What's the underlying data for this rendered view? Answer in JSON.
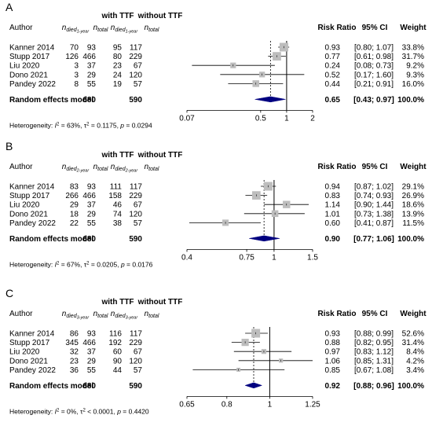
{
  "chart_data": [
    {
      "type": "forest",
      "panel_label": "A",
      "header_group_1": "with TTF",
      "header_group_2": "without TTF",
      "col_author": "Author",
      "col_n1_base": "n",
      "col_n1_sub": "died",
      "col_n1_subsub": "1-year",
      "col_ntotal_base": "n",
      "col_ntotal_sub": "total",
      "col_rr": "Risk Ratio",
      "col_ci": "95% CI",
      "col_weight": "Weight",
      "studies": [
        {
          "author": "Kanner 2014",
          "e1": "70",
          "n1": "93",
          "e2": "95",
          "n2": "117",
          "rr": 0.93,
          "lo": 0.8,
          "hi": 1.07,
          "rr_text": "0.93",
          "ci_text": "[0.80; 1.07]",
          "weight": 33.8,
          "weight_text": "33.8%"
        },
        {
          "author": "Stupp 2017",
          "e1": "126",
          "n1": "466",
          "e2": "80",
          "n2": "229",
          "rr": 0.77,
          "lo": 0.61,
          "hi": 0.98,
          "rr_text": "0.77",
          "ci_text": "[0.61; 0.98]",
          "weight": 31.7,
          "weight_text": "31.7%"
        },
        {
          "author": "Liu 2020",
          "e1": "3",
          "n1": "37",
          "e2": "23",
          "n2": "67",
          "rr": 0.24,
          "lo": 0.08,
          "hi": 0.73,
          "rr_text": "0.24",
          "ci_text": "[0.08; 0.73]",
          "weight": 9.2,
          "weight_text": "9.2%"
        },
        {
          "author": "Dono 2021",
          "e1": "3",
          "n1": "29",
          "e2": "24",
          "n2": "120",
          "rr": 0.52,
          "lo": 0.17,
          "hi": 1.6,
          "rr_text": "0.52",
          "ci_text": "[0.17; 1.60]",
          "weight": 9.3,
          "weight_text": "9.3%"
        },
        {
          "author": "Pandey 2022",
          "e1": "8",
          "n1": "55",
          "e2": "19",
          "n2": "57",
          "rr": 0.44,
          "lo": 0.21,
          "hi": 0.91,
          "rr_text": "0.44",
          "ci_text": "[0.21; 0.91]",
          "weight": 16.0,
          "weight_text": "16.0%"
        }
      ],
      "summary": {
        "label": "Random effects model",
        "n1": "680",
        "n2": "590",
        "rr": 0.65,
        "lo": 0.43,
        "hi": 0.97,
        "rr_text": "0.65",
        "ci_text": "[0.43; 0.97]",
        "weight_text": "100.0%"
      },
      "heterogeneity": {
        "prefix": "Heterogeneity: ",
        "i2_text": " = 63%, ",
        "tau2_text": " = 0.1175, ",
        "p_text": " = 0.0294"
      },
      "xscale": "log",
      "xlim": [
        0.07,
        2
      ],
      "ticks": [
        0.07,
        0.5,
        1,
        2
      ],
      "tick_labels": [
        "0.07",
        "0.5",
        "1",
        "2"
      ]
    },
    {
      "type": "forest",
      "panel_label": "B",
      "header_group_1": "with TTF",
      "header_group_2": "without TTF",
      "col_author": "Author",
      "col_n1_base": "n",
      "col_n1_sub": "died",
      "col_n1_subsub": "2-year",
      "col_ntotal_base": "n",
      "col_ntotal_sub": "total",
      "col_rr": "Risk Ratio",
      "col_ci": "95% CI",
      "col_weight": "Weight",
      "studies": [
        {
          "author": "Kanner 2014",
          "e1": "83",
          "n1": "93",
          "e2": "111",
          "n2": "117",
          "rr": 0.94,
          "lo": 0.87,
          "hi": 1.02,
          "rr_text": "0.94",
          "ci_text": "[0.87; 1.02]",
          "weight": 29.1,
          "weight_text": "29.1%"
        },
        {
          "author": "Stupp 2017",
          "e1": "266",
          "n1": "466",
          "e2": "158",
          "n2": "229",
          "rr": 0.83,
          "lo": 0.74,
          "hi": 0.93,
          "rr_text": "0.83",
          "ci_text": "[0.74; 0.93]",
          "weight": 26.9,
          "weight_text": "26.9%"
        },
        {
          "author": "Liu 2020",
          "e1": "29",
          "n1": "37",
          "e2": "46",
          "n2": "67",
          "rr": 1.14,
          "lo": 0.9,
          "hi": 1.44,
          "rr_text": "1.14",
          "ci_text": "[0.90; 1.44]",
          "weight": 18.6,
          "weight_text": "18.6%"
        },
        {
          "author": "Dono 2021",
          "e1": "18",
          "n1": "29",
          "e2": "74",
          "n2": "120",
          "rr": 1.01,
          "lo": 0.73,
          "hi": 1.38,
          "rr_text": "1.01",
          "ci_text": "[0.73; 1.38]",
          "weight": 13.9,
          "weight_text": "13.9%"
        },
        {
          "author": "Pandey 2022",
          "e1": "22",
          "n1": "55",
          "e2": "38",
          "n2": "57",
          "rr": 0.6,
          "lo": 0.41,
          "hi": 0.87,
          "rr_text": "0.60",
          "ci_text": "[0.41; 0.87]",
          "weight": 11.5,
          "weight_text": "11.5%"
        }
      ],
      "summary": {
        "label": "Random effects model",
        "n1": "680",
        "n2": "590",
        "rr": 0.9,
        "lo": 0.77,
        "hi": 1.06,
        "rr_text": "0.90",
        "ci_text": "[0.77; 1.06]",
        "weight_text": "100.0%"
      },
      "heterogeneity": {
        "prefix": "Heterogeneity: ",
        "i2_text": " = 67%, ",
        "tau2_text": " = 0.0205, ",
        "p_text": " = 0.0176"
      },
      "xscale": "log",
      "xlim": [
        0.4,
        1.5
      ],
      "ticks": [
        0.4,
        0.75,
        1,
        1.5
      ],
      "tick_labels": [
        "0.4",
        "0.75",
        "1",
        "1.5"
      ]
    },
    {
      "type": "forest",
      "panel_label": "C",
      "header_group_1": "with TTF",
      "header_group_2": "without TTF",
      "col_author": "Author",
      "col_n1_base": "n",
      "col_n1_sub": "died",
      "col_n1_subsub": "3-year",
      "col_ntotal_base": "n",
      "col_ntotal_sub": "total",
      "col_rr": "Risk Ratio",
      "col_ci": "95% CI",
      "col_weight": "Weight",
      "studies": [
        {
          "author": "Kanner 2014",
          "e1": "86",
          "n1": "93",
          "e2": "116",
          "n2": "117",
          "rr": 0.93,
          "lo": 0.88,
          "hi": 0.99,
          "rr_text": "0.93",
          "ci_text": "[0.88; 0.99]",
          "weight": 52.6,
          "weight_text": "52.6%"
        },
        {
          "author": "Stupp 2017",
          "e1": "345",
          "n1": "466",
          "e2": "192",
          "n2": "229",
          "rr": 0.88,
          "lo": 0.82,
          "hi": 0.95,
          "rr_text": "0.88",
          "ci_text": "[0.82; 0.95]",
          "weight": 31.4,
          "weight_text": "31.4%"
        },
        {
          "author": "Liu 2020",
          "e1": "32",
          "n1": "37",
          "e2": "60",
          "n2": "67",
          "rr": 0.97,
          "lo": 0.83,
          "hi": 1.12,
          "rr_text": "0.97",
          "ci_text": "[0.83; 1.12]",
          "weight": 8.4,
          "weight_text": "8.4%"
        },
        {
          "author": "Dono 2021",
          "e1": "23",
          "n1": "29",
          "e2": "90",
          "n2": "120",
          "rr": 1.06,
          "lo": 0.85,
          "hi": 1.31,
          "rr_text": "1.06",
          "ci_text": "[0.85; 1.31]",
          "weight": 4.2,
          "weight_text": "4.2%"
        },
        {
          "author": "Pandey 2022",
          "e1": "36",
          "n1": "55",
          "e2": "44",
          "n2": "57",
          "rr": 0.85,
          "lo": 0.67,
          "hi": 1.08,
          "rr_text": "0.85",
          "ci_text": "[0.67; 1.08]",
          "weight": 3.4,
          "weight_text": "3.4%"
        }
      ],
      "summary": {
        "label": "Random effects model",
        "n1": "680",
        "n2": "590",
        "rr": 0.92,
        "lo": 0.88,
        "hi": 0.96,
        "rr_text": "0.92",
        "ci_text": "[0.88; 0.96]",
        "weight_text": "100.0%"
      },
      "heterogeneity": {
        "prefix": "Heterogeneity: ",
        "i2_text": " = 0%, ",
        "tau2_text": " < 0.0001, ",
        "p_text": " = 0.4420"
      },
      "xscale": "log",
      "xlim": [
        0.65,
        1.25
      ],
      "ticks": [
        0.65,
        0.8,
        1,
        1.25
      ],
      "tick_labels": [
        "0.65",
        "0.8",
        "1",
        "1.25"
      ]
    }
  ],
  "colors": {
    "square": "#bdbdbd",
    "diamond": "#000080",
    "line": "#000000",
    "text": "#000000"
  }
}
